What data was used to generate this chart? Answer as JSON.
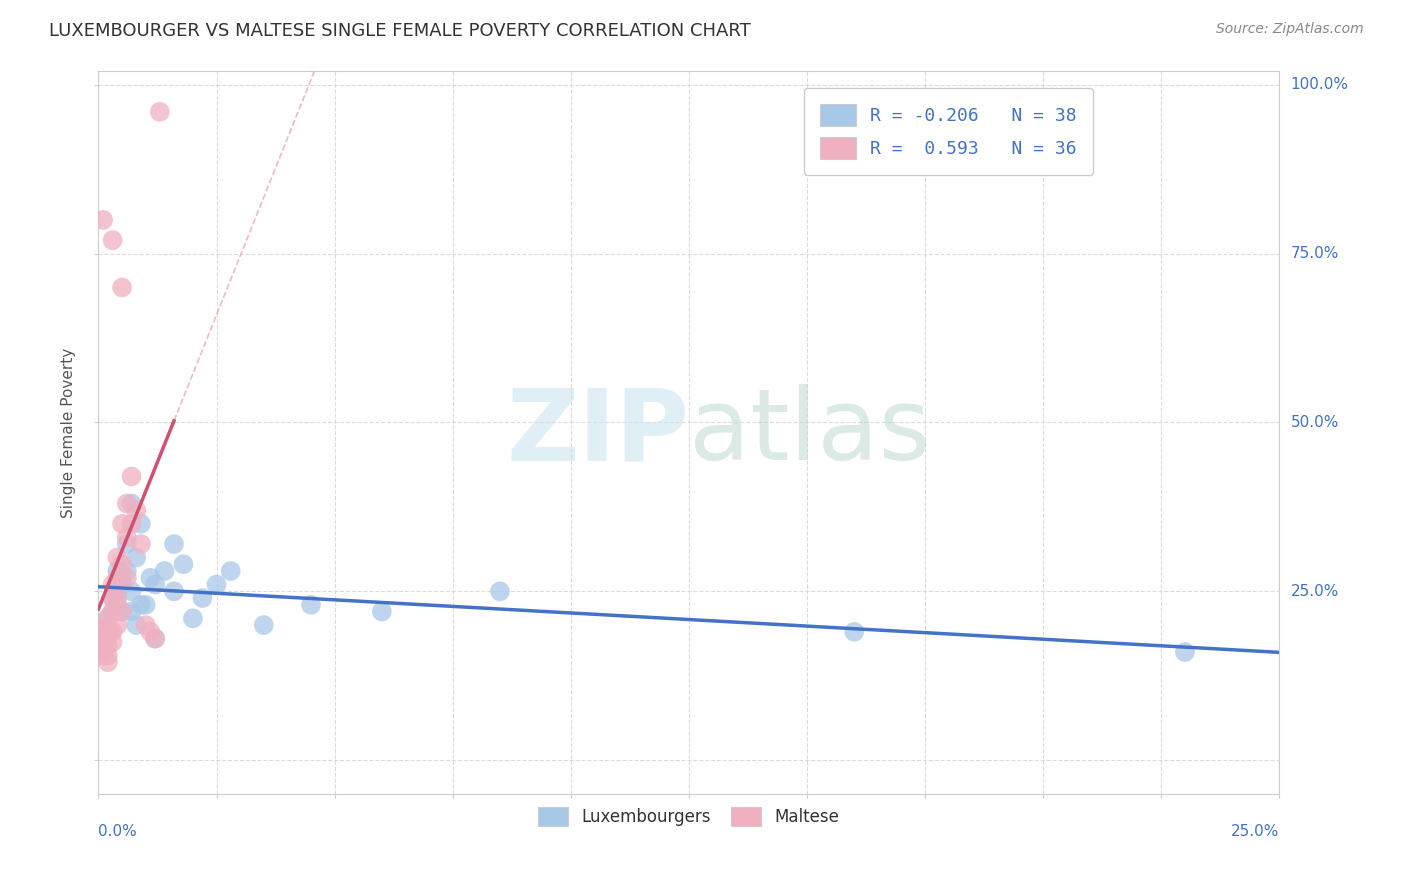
{
  "title": "LUXEMBOURGER VS MALTESE SINGLE FEMALE POVERTY CORRELATION CHART",
  "source": "Source: ZipAtlas.com",
  "ylabel": "Single Female Poverty",
  "xlim": [
    0.0,
    0.25
  ],
  "ylim": [
    -0.05,
    1.02
  ],
  "lux_color": "#a8c8e8",
  "malt_color": "#f0b0c0",
  "lux_line_color": "#4472c4",
  "malt_line_color": "#d05070",
  "malt_dash_color": "#e09090",
  "grid_color": "#d8d8d8",
  "title_color": "#333333",
  "source_color": "#888888",
  "axis_label_color": "#4472c4",
  "watermark_color": "#cce4f0",
  "background_color": "#ffffff",
  "legend_text_color": "#4472c4",
  "luxembourger_points": [
    [
      0.001,
      0.18
    ],
    [
      0.002,
      0.21
    ],
    [
      0.002,
      0.19
    ],
    [
      0.003,
      0.24
    ],
    [
      0.003,
      0.22
    ],
    [
      0.004,
      0.25
    ],
    [
      0.004,
      0.28
    ],
    [
      0.004,
      0.23
    ],
    [
      0.005,
      0.27
    ],
    [
      0.005,
      0.26
    ],
    [
      0.005,
      0.22
    ],
    [
      0.006,
      0.32
    ],
    [
      0.006,
      0.28
    ],
    [
      0.007,
      0.22
    ],
    [
      0.007,
      0.38
    ],
    [
      0.007,
      0.25
    ],
    [
      0.008,
      0.2
    ],
    [
      0.008,
      0.3
    ],
    [
      0.009,
      0.23
    ],
    [
      0.009,
      0.35
    ],
    [
      0.01,
      0.23
    ],
    [
      0.011,
      0.27
    ],
    [
      0.012,
      0.26
    ],
    [
      0.012,
      0.18
    ],
    [
      0.014,
      0.28
    ],
    [
      0.016,
      0.32
    ],
    [
      0.016,
      0.25
    ],
    [
      0.018,
      0.29
    ],
    [
      0.02,
      0.21
    ],
    [
      0.022,
      0.24
    ],
    [
      0.025,
      0.26
    ],
    [
      0.028,
      0.28
    ],
    [
      0.035,
      0.2
    ],
    [
      0.045,
      0.23
    ],
    [
      0.06,
      0.22
    ],
    [
      0.085,
      0.25
    ],
    [
      0.16,
      0.19
    ],
    [
      0.23,
      0.16
    ]
  ],
  "maltese_points": [
    [
      0.001,
      0.195
    ],
    [
      0.001,
      0.175
    ],
    [
      0.001,
      0.165
    ],
    [
      0.001,
      0.155
    ],
    [
      0.002,
      0.21
    ],
    [
      0.002,
      0.195
    ],
    [
      0.002,
      0.185
    ],
    [
      0.002,
      0.17
    ],
    [
      0.002,
      0.155
    ],
    [
      0.002,
      0.145
    ],
    [
      0.003,
      0.26
    ],
    [
      0.003,
      0.24
    ],
    [
      0.003,
      0.22
    ],
    [
      0.003,
      0.19
    ],
    [
      0.003,
      0.175
    ],
    [
      0.004,
      0.3
    ],
    [
      0.004,
      0.27
    ],
    [
      0.004,
      0.24
    ],
    [
      0.004,
      0.2
    ],
    [
      0.005,
      0.35
    ],
    [
      0.005,
      0.29
    ],
    [
      0.005,
      0.22
    ],
    [
      0.006,
      0.38
    ],
    [
      0.006,
      0.33
    ],
    [
      0.006,
      0.27
    ],
    [
      0.007,
      0.42
    ],
    [
      0.007,
      0.35
    ],
    [
      0.008,
      0.37
    ],
    [
      0.009,
      0.32
    ],
    [
      0.01,
      0.2
    ],
    [
      0.011,
      0.19
    ],
    [
      0.012,
      0.18
    ],
    [
      0.013,
      0.96
    ],
    [
      0.005,
      0.7
    ],
    [
      0.003,
      0.77
    ],
    [
      0.001,
      0.8
    ]
  ]
}
